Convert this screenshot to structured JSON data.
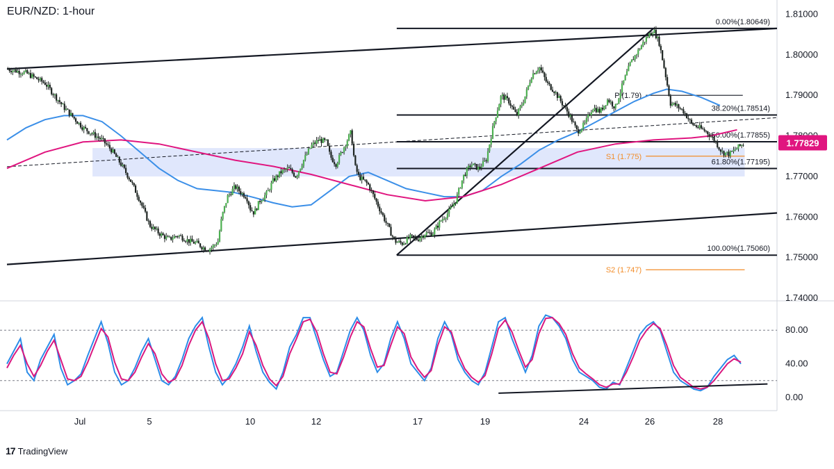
{
  "header": {
    "title": "EUR/NZD: 1-hour"
  },
  "branding": {
    "logo_mark": "17",
    "logo_text": "TradingView"
  },
  "colors": {
    "ema_blue": "#3b8fe8",
    "ema_pink": "#e0157f",
    "support_orange": "#f28c28",
    "zone_blue": "#dbe3fb",
    "candle_dark": "#1d2421",
    "candle_green": "#4caf50",
    "stoch_k": "#2b8ce8",
    "stoch_d": "#d9187f",
    "price_badge": "#e0157f"
  },
  "chart_data": [
    {
      "type": "candlestick",
      "title": "EUR/NZD: 1-hour",
      "ylim": [
        1.7395,
        1.8135
      ],
      "y_ticks": [
        "1.81000",
        "1.80000",
        "1.79000",
        "1.78000",
        "1.77000",
        "1.76000",
        "1.75000",
        "1.74000"
      ],
      "x_ticks": [
        "Jul",
        "5",
        "10",
        "12",
        "17",
        "19",
        "24",
        "26",
        "28"
      ],
      "x_tick_days": [
        1,
        5,
        10,
        12,
        17,
        19,
        24,
        26,
        28
      ],
      "last_price": "1.77829",
      "close_path": [
        [
          0,
          1.7965
        ],
        [
          1,
          1.7955
        ],
        [
          2,
          1.793
        ],
        [
          3,
          1.787
        ],
        [
          4,
          1.782
        ],
        [
          5,
          1.779
        ],
        [
          5.5,
          1.7765
        ],
        [
          6,
          1.773
        ],
        [
          6.5,
          1.769
        ],
        [
          7,
          1.764
        ],
        [
          7.5,
          1.758
        ],
        [
          8,
          1.756
        ],
        [
          8.5,
          1.7545
        ],
        [
          9,
          1.7555
        ],
        [
          9.6,
          1.754
        ],
        [
          10,
          1.7535
        ],
        [
          10.3,
          1.7525
        ],
        [
          10.6,
          1.752
        ],
        [
          10.9,
          1.753
        ],
        [
          11.1,
          1.754
        ],
        [
          11.3,
          1.76
        ],
        [
          11.6,
          1.765
        ],
        [
          12,
          1.7675
        ],
        [
          12.3,
          1.766
        ],
        [
          12.6,
          1.765
        ],
        [
          12.8,
          1.762
        ],
        [
          13,
          1.761
        ],
        [
          13.3,
          1.764
        ],
        [
          13.7,
          1.766
        ],
        [
          14,
          1.769
        ],
        [
          14.4,
          1.771
        ],
        [
          14.8,
          1.772
        ],
        [
          15.2,
          1.77
        ],
        [
          15.6,
          1.774
        ],
        [
          16,
          1.7775
        ],
        [
          16.4,
          1.779
        ],
        [
          16.8,
          1.7785
        ],
        [
          17,
          1.775
        ],
        [
          17.3,
          1.773
        ],
        [
          17.6,
          1.776
        ],
        [
          17.9,
          1.779
        ],
        [
          18.1,
          1.781
        ],
        [
          18.3,
          1.7725
        ],
        [
          18.5,
          1.77
        ],
        [
          19,
          1.768
        ],
        [
          19.5,
          1.763
        ],
        [
          20,
          1.758
        ],
        [
          20.4,
          1.754
        ],
        [
          20.8,
          1.7535
        ],
        [
          21.2,
          1.755
        ],
        [
          21.6,
          1.7545
        ],
        [
          22,
          1.756
        ],
        [
          22.4,
          1.756
        ],
        [
          22.8,
          1.759
        ],
        [
          23.2,
          1.761
        ],
        [
          23.6,
          1.764
        ],
        [
          24,
          1.77
        ],
        [
          24.4,
          1.773
        ],
        [
          24.8,
          1.772
        ],
        [
          25.2,
          1.774
        ],
        [
          25.6,
          1.783
        ],
        [
          26,
          1.79
        ],
        [
          26.4,
          1.7885
        ],
        [
          26.8,
          1.785
        ],
        [
          27.2,
          1.789
        ],
        [
          27.6,
          1.795
        ],
        [
          28,
          1.797
        ],
        [
          28.4,
          1.793
        ],
        [
          28.8,
          1.791
        ],
        [
          29.2,
          1.788
        ],
        [
          29.6,
          1.785
        ],
        [
          30,
          1.781
        ],
        [
          30.4,
          1.783
        ],
        [
          30.8,
          1.787
        ],
        [
          31.2,
          1.786
        ],
        [
          31.6,
          1.789
        ],
        [
          32,
          1.787
        ],
        [
          32.4,
          1.793
        ],
        [
          32.8,
          1.798
        ],
        [
          33.2,
          1.801
        ],
        [
          33.6,
          1.804
        ],
        [
          34,
          1.8062
        ],
        [
          34.3,
          1.803
        ],
        [
          34.6,
          1.796
        ],
        [
          34.9,
          1.788
        ],
        [
          35.2,
          1.7875
        ],
        [
          35.6,
          1.786
        ],
        [
          36,
          1.783
        ],
        [
          36.4,
          1.782
        ],
        [
          36.8,
          1.781
        ],
        [
          37.2,
          1.779
        ],
        [
          37.6,
          1.776
        ],
        [
          38,
          1.7755
        ],
        [
          38.4,
          1.777
        ],
        [
          38.8,
          1.7783
        ]
      ],
      "series": [
        {
          "name": "",
          "color": "#3b8fe8",
          "points": [
            [
              0,
              1.779
            ],
            [
              1,
              1.782
            ],
            [
              2,
              1.784
            ],
            [
              3,
              1.785
            ],
            [
              4,
              1.785
            ],
            [
              5,
              1.7835
            ],
            [
              6,
              1.78
            ],
            [
              7,
              1.776
            ],
            [
              8,
              1.772
            ],
            [
              9,
              1.769
            ],
            [
              10,
              1.767
            ],
            [
              11,
              1.7665
            ],
            [
              12,
              1.766
            ],
            [
              13,
              1.7648
            ],
            [
              14,
              1.7635
            ],
            [
              15,
              1.7625
            ],
            [
              16,
              1.763
            ],
            [
              17,
              1.7665
            ],
            [
              18,
              1.77
            ],
            [
              19,
              1.771
            ],
            [
              20,
              1.769
            ],
            [
              21,
              1.767
            ],
            [
              22,
              1.766
            ],
            [
              23,
              1.765
            ],
            [
              24,
              1.765
            ],
            [
              25,
              1.7665
            ],
            [
              26,
              1.77
            ],
            [
              27,
              1.773
            ],
            [
              28,
              1.7765
            ],
            [
              29,
              1.779
            ],
            [
              30,
              1.781
            ],
            [
              31,
              1.7835
            ],
            [
              32,
              1.786
            ],
            [
              33,
              1.7885
            ],
            [
              34,
              1.7905
            ],
            [
              34.7,
              1.7915
            ],
            [
              35.5,
              1.791
            ],
            [
              36.5,
              1.7895
            ],
            [
              37.5,
              1.7875
            ]
          ]
        },
        {
          "name": "",
          "color": "#e0157f",
          "points": [
            [
              0,
              1.772
            ],
            [
              2,
              1.776
            ],
            [
              4,
              1.7785
            ],
            [
              6,
              1.779
            ],
            [
              8,
              1.778
            ],
            [
              10,
              1.776
            ],
            [
              12,
              1.774
            ],
            [
              14,
              1.7725
            ],
            [
              16,
              1.7705
            ],
            [
              18,
              1.768
            ],
            [
              20,
              1.7655
            ],
            [
              22,
              1.764
            ],
            [
              24,
              1.765
            ],
            [
              26,
              1.768
            ],
            [
              28,
              1.772
            ],
            [
              30,
              1.776
            ],
            [
              32,
              1.778
            ],
            [
              34,
              1.779
            ],
            [
              36,
              1.7795
            ],
            [
              37,
              1.78
            ],
            [
              38.4,
              1.7815
            ]
          ]
        }
      ],
      "horizontal_levels": [
        {
          "label": "0.00%(1.80649)",
          "value": 1.80649
        },
        {
          "label": "38.20%(1.78514)",
          "value": 1.78514
        },
        {
          "label": "50.00%(1.77855)",
          "value": 1.77855
        },
        {
          "label": "61.80%(1.77195)",
          "value": 1.77195
        },
        {
          "label": "100.00%(1.75060)",
          "value": 1.7506
        }
      ],
      "pivot_lines": [
        {
          "label": "P (1.79)",
          "value": 1.79
        },
        {
          "label": "S1 (1.775)",
          "value": 1.775
        },
        {
          "label": "S2 (1.747)",
          "value": 1.747
        }
      ],
      "trend_lines": [
        {
          "from": [
            0,
            1.7965
          ],
          "to": [
            40.5,
            1.8065
          ]
        },
        {
          "from": [
            0,
            1.7483
          ],
          "to": [
            40.5,
            1.761
          ]
        },
        {
          "from": [
            20.5,
            1.7506
          ],
          "to": [
            34,
            1.8065
          ]
        },
        {
          "from": [
            0,
            1.7724
          ],
          "to": [
            40.5,
            1.7845
          ],
          "dashed": true
        }
      ],
      "zone": {
        "from_x": 4.5,
        "to_x": 38.8,
        "top": 1.777,
        "bottom": 1.77
      }
    },
    {
      "type": "line",
      "ylim": [
        -5,
        105
      ],
      "y_ticks": [
        "80.00",
        "40.00",
        "0.00"
      ],
      "levels": [
        80,
        20
      ],
      "series": [
        {
          "name": "",
          "color": "#2b8ce8",
          "values": [
            40,
            55,
            70,
            30,
            20,
            45,
            60,
            75,
            35,
            15,
            20,
            28,
            50,
            70,
            90,
            65,
            30,
            15,
            20,
            35,
            55,
            70,
            45,
            20,
            15,
            25,
            45,
            70,
            85,
            95,
            60,
            30,
            15,
            25,
            40,
            60,
            85,
            55,
            30,
            18,
            10,
            30,
            60,
            75,
            95,
            95,
            70,
            45,
            25,
            30,
            55,
            80,
            95,
            80,
            50,
            30,
            40,
            70,
            90,
            70,
            40,
            30,
            20,
            35,
            70,
            90,
            75,
            45,
            30,
            20,
            15,
            30,
            60,
            90,
            95,
            70,
            50,
            30,
            50,
            85,
            98,
            95,
            85,
            70,
            45,
            30,
            25,
            20,
            12,
            10,
            18,
            15,
            35,
            55,
            75,
            85,
            90,
            80,
            55,
            30,
            20,
            15,
            10,
            8,
            12,
            25,
            35,
            45,
            50,
            40
          ]
        },
        {
          "name": "",
          "color": "#d9187f",
          "values": [
            35,
            50,
            62,
            40,
            25,
            38,
            55,
            68,
            45,
            22,
            20,
            25,
            42,
            62,
            82,
            72,
            42,
            22,
            20,
            30,
            48,
            64,
            52,
            28,
            18,
            22,
            38,
            62,
            80,
            90,
            70,
            40,
            20,
            22,
            35,
            52,
            78,
            62,
            38,
            22,
            14,
            25,
            52,
            70,
            90,
            93,
            78,
            52,
            30,
            28,
            48,
            72,
            90,
            84,
            58,
            36,
            38,
            62,
            84,
            76,
            48,
            34,
            24,
            32,
            62,
            84,
            78,
            52,
            34,
            24,
            18,
            26,
            52,
            82,
            92,
            78,
            56,
            36,
            45,
            76,
            94,
            95,
            88,
            75,
            52,
            35,
            28,
            22,
            15,
            12,
            16,
            16,
            30,
            48,
            68,
            80,
            88,
            82,
            62,
            38,
            24,
            18,
            12,
            10,
            12,
            20,
            30,
            40,
            46,
            42
          ]
        }
      ],
      "trend_line": {
        "from": [
          73,
          5
        ],
        "to": [
          109,
          16
        ]
      }
    }
  ]
}
